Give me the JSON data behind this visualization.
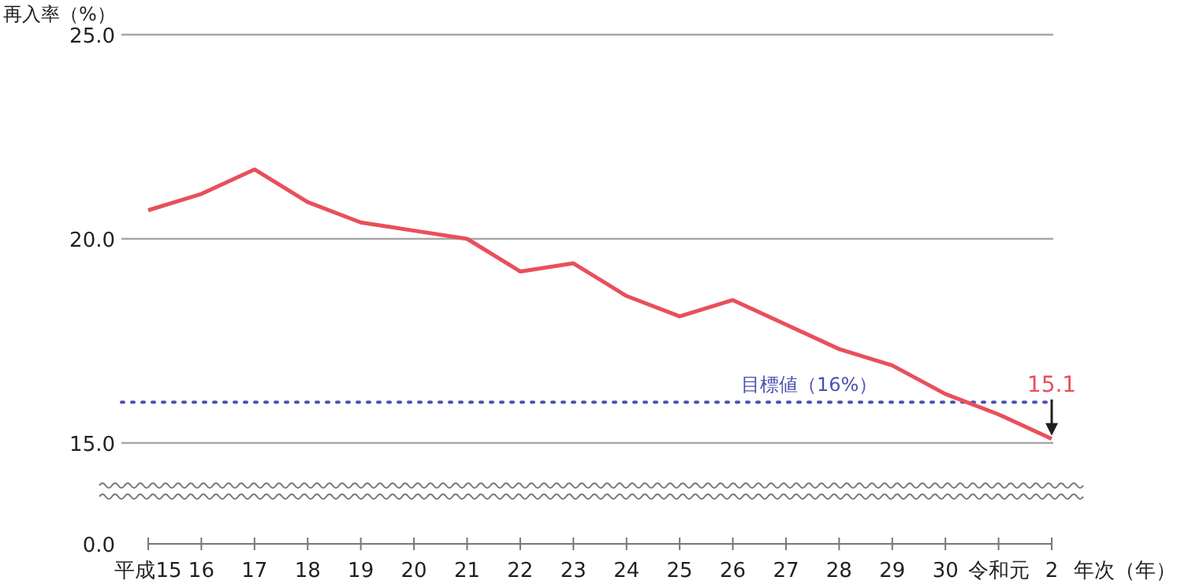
{
  "chart_data": {
    "type": "line",
    "ylabel": "再入率（%）",
    "xlabel": "年次（年）",
    "categories": [
      "平成15",
      "16",
      "17",
      "18",
      "19",
      "20",
      "21",
      "22",
      "23",
      "24",
      "25",
      "26",
      "27",
      "28",
      "29",
      "30",
      "令和元",
      "2"
    ],
    "series": [
      {
        "color": "#e8505b",
        "values": [
          20.7,
          21.1,
          21.7,
          20.9,
          20.4,
          20.2,
          20.0,
          19.2,
          19.4,
          18.6,
          18.1,
          18.5,
          17.9,
          17.3,
          16.9,
          16.2,
          15.7,
          15.1
        ]
      }
    ],
    "ylim": [
      15,
      25
    ],
    "yticks": [
      {
        "value": 15,
        "label": "15.0"
      },
      {
        "value": 20,
        "label": "20.0"
      },
      {
        "value": 25,
        "label": "25.0"
      }
    ],
    "grid": "y",
    "ref_lines": [
      {
        "axis": "y",
        "value": 16,
        "label": "目標値（16%）",
        "color": "#4a52b0",
        "line_style": "dotted"
      }
    ],
    "annotations": [
      "0.0",
      {
        "text": "15.1",
        "x": "2",
        "y": 15.1
      }
    ]
  }
}
